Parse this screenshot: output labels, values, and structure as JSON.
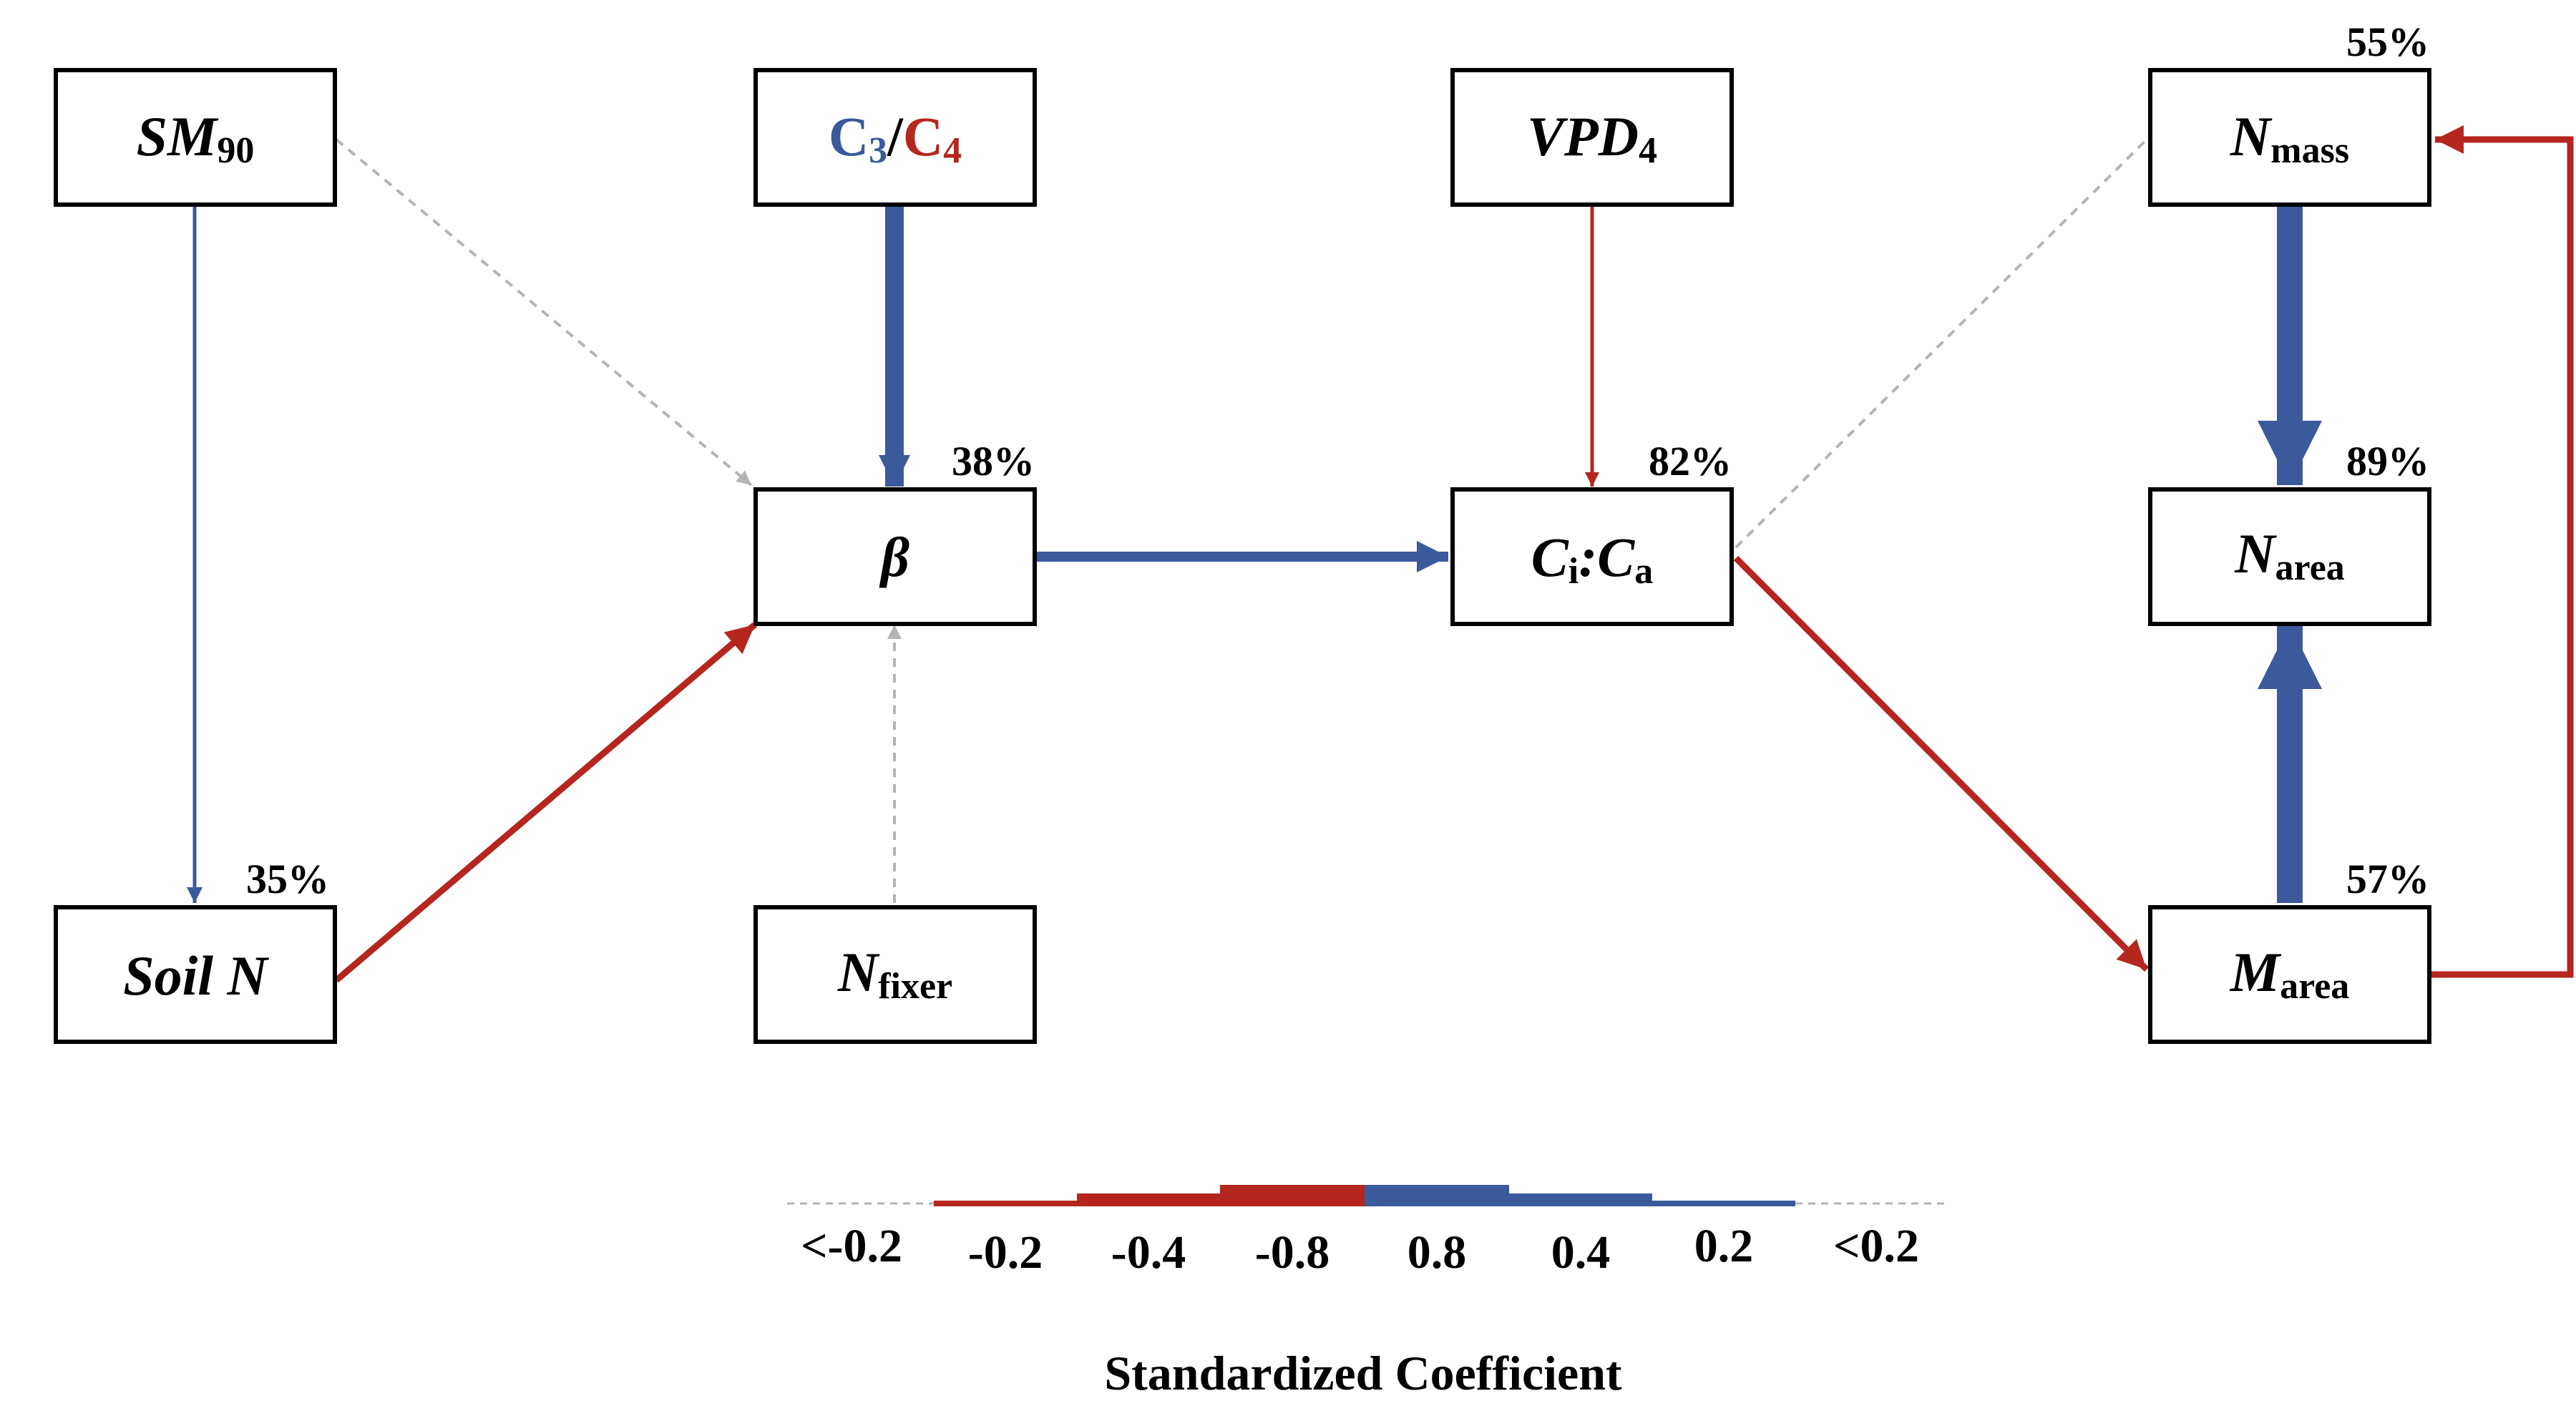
{
  "colors": {
    "positive": "#3a5a9b",
    "negative": "#b5261f",
    "nonsignificant": "#b4b4b4",
    "box_stroke": "#000000"
  },
  "nodes": {
    "sm90": {
      "main": "SM",
      "sub": "90"
    },
    "c3c4": {
      "part1": "C",
      "sub1": "3",
      "slash": "/",
      "part2": "C",
      "sub2": "4"
    },
    "vpd4": {
      "main": "VPD",
      "sub": "4"
    },
    "nmass": {
      "main": "N",
      "sub": "mass",
      "r2": "55%"
    },
    "beta": {
      "main": "β",
      "r2": "38%"
    },
    "cica": {
      "main1": "C",
      "sub1": "i",
      "colon": ":",
      "main2": "C",
      "sub2": "a",
      "r2": "82%"
    },
    "narea": {
      "main": "N",
      "sub": "area",
      "r2": "89%"
    },
    "soiln": {
      "main": "Soil N",
      "r2": "35%"
    },
    "nfixer": {
      "main": "N",
      "sub": "fixer"
    },
    "marea": {
      "main": "M",
      "sub": "area",
      "r2": "57%"
    }
  },
  "paths": [
    {
      "from": "sm90",
      "to": "soiln",
      "sign": "positive",
      "strength": 0.2
    },
    {
      "from": "sm90",
      "to": "beta",
      "sign": "nonsignificant",
      "strength": 0
    },
    {
      "from": "c3c4",
      "to": "beta",
      "sign": "positive",
      "strength": 0.6
    },
    {
      "from": "vpd4",
      "to": "cica",
      "sign": "negative",
      "strength": 0.2
    },
    {
      "from": "soiln",
      "to": "beta",
      "sign": "negative",
      "strength": 0.3
    },
    {
      "from": "nfixer",
      "to": "beta",
      "sign": "nonsignificant",
      "strength": 0
    },
    {
      "from": "beta",
      "to": "cica",
      "sign": "positive",
      "strength": 0.4
    },
    {
      "from": "cica",
      "to": "nmass",
      "sign": "nonsignificant",
      "strength": 0
    },
    {
      "from": "cica",
      "to": "marea",
      "sign": "negative",
      "strength": 0.4
    },
    {
      "from": "nmass",
      "to": "narea",
      "sign": "positive",
      "strength": 0.8
    },
    {
      "from": "marea",
      "to": "narea",
      "sign": "positive",
      "strength": 0.8
    },
    {
      "from": "marea",
      "to": "nmass",
      "sign": "negative",
      "strength": 0.4
    }
  ],
  "legend": {
    "labels": [
      "<-0.2",
      "-0.2",
      "-0.4",
      "-0.8",
      "0.8",
      "0.4",
      "0.2",
      "<0.2"
    ],
    "title": "Standardized Coefficient"
  }
}
